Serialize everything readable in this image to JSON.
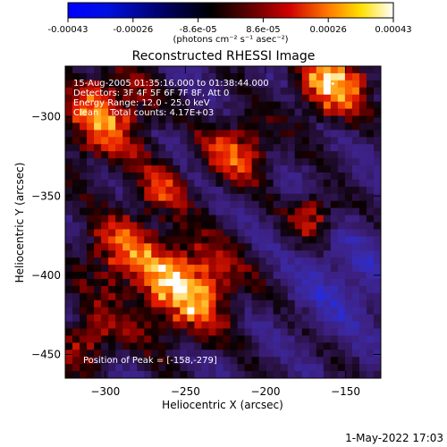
{
  "colorbar": {
    "ticks": [
      "-0.00043",
      "-0.00026",
      "-8.6e-05",
      "8.6e-05",
      "0.00026",
      "0.00043"
    ],
    "units": "(photons cm⁻² s⁻¹ asec⁻²)"
  },
  "chart_data": {
    "type": "heatmap",
    "title": "Reconstructed RHESSI Image",
    "xlabel": "Heliocentric X (arcsec)",
    "ylabel": "Heliocentric Y (arcsec)",
    "xlim": [
      -325,
      -128
    ],
    "ylim": [
      -465,
      -268
    ],
    "xticks": [
      -300,
      -250,
      -200,
      -150
    ],
    "xtick_labels": [
      "−300",
      "−250",
      "−200",
      "−150"
    ],
    "yticks": [
      -300,
      -350,
      -400,
      -450
    ],
    "ytick_labels": [
      "−300",
      "−350",
      "−400",
      "−450"
    ],
    "colorbar_range": [
      -0.00043,
      0.00043
    ],
    "colormap": [
      "#0000ff",
      "#000080",
      "#000000",
      "#800000",
      "#ff0000",
      "#ff8000",
      "#ffff00",
      "#ffffff"
    ],
    "annotations": {
      "time": "15-Aug-2005 01:35:16.000 to 01:38:44.000",
      "detectors": "Detectors: 3F 4F 5F 6F 7F 8F, Att 0",
      "energy": "Energy Range: 12.0 - 25.0 keV",
      "clean": "Clean    Total counts: 4.17E+03",
      "peak": "Position of Peak = [-158,-279]"
    },
    "peak_position": [
      -158,
      -279
    ],
    "total_counts": 4170
  },
  "footer": {
    "datetime": "1-May-2022 17:03"
  }
}
